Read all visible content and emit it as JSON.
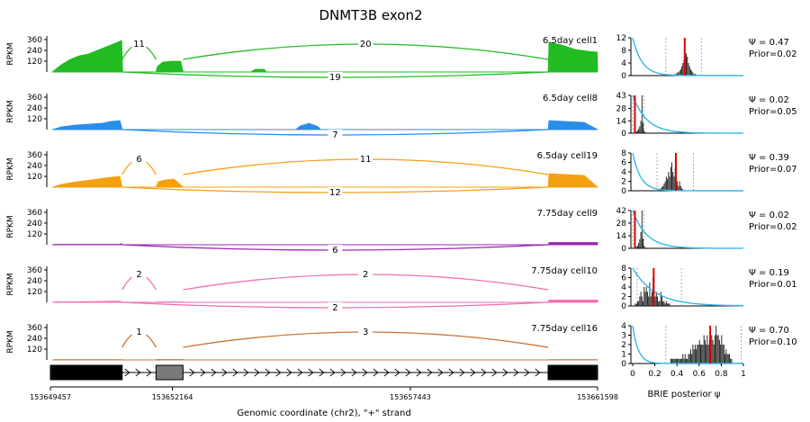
{
  "chart_data": {
    "type": "sashimi",
    "title": "DNMT3B exon2",
    "ylabel": "RPKM",
    "yticks": [
      "360",
      "240",
      "120"
    ],
    "ylim": [
      0,
      400
    ],
    "xlabel": "Genomic coordinate (chr2), \"+\" strand",
    "xticks": [
      "153649457",
      "153652164",
      "153657443",
      "153661598"
    ],
    "xtick_values": [
      153649457,
      153652164,
      153657443,
      153661598
    ],
    "xlim": [
      153649457,
      153661598
    ],
    "gene_model": {
      "strand": "+",
      "exons": [
        [
          153649457,
          153651050
        ],
        [
          153651800,
          153652400
        ],
        [
          153660500,
          153661598
        ]
      ]
    },
    "tracks": [
      {
        "name": "6.5day cell1",
        "color": "#22bb22",
        "coverage": [
          [
            153649500,
            0
          ],
          [
            153649700,
            80
          ],
          [
            153649900,
            140
          ],
          [
            153650100,
            180
          ],
          [
            153650300,
            200
          ],
          [
            153650500,
            240
          ],
          [
            153650700,
            280
          ],
          [
            153650900,
            320
          ],
          [
            153651040,
            350
          ],
          [
            153651060,
            0
          ],
          [
            153651800,
            0
          ],
          [
            153651830,
            60
          ],
          [
            153651950,
            110
          ],
          [
            153652150,
            120
          ],
          [
            153652350,
            120
          ],
          [
            153652400,
            0
          ],
          [
            153653900,
            0
          ],
          [
            153654000,
            30
          ],
          [
            153654200,
            30
          ],
          [
            153654250,
            0
          ],
          [
            153660500,
            0
          ],
          [
            153660520,
            330
          ],
          [
            153660800,
            300
          ],
          [
            153661100,
            250
          ],
          [
            153661400,
            230
          ],
          [
            153661590,
            220
          ],
          [
            153661598,
            0
          ]
        ],
        "junctions": [
          {
            "count": "11",
            "placement": "above",
            "from": 153651050,
            "to": 153651800
          },
          {
            "count": "20",
            "placement": "above",
            "from": 153652400,
            "to": 153660500
          },
          {
            "count": "19",
            "placement": "below",
            "from": 153651050,
            "to": 153660500
          }
        ],
        "psi": "Ψ = 0.47",
        "prior": "Prior=0.02",
        "hist_yticks": [
          "12",
          "8",
          "4",
          "0"
        ],
        "hist_ymax": 12,
        "hist": [
          0,
          0,
          0,
          0,
          0,
          0,
          0,
          0,
          0,
          0,
          0,
          0,
          0,
          0,
          0,
          0,
          0,
          0,
          0,
          0,
          0,
          0,
          0,
          0,
          0,
          0,
          0,
          0,
          0,
          0,
          0,
          0,
          0,
          0,
          0,
          0,
          0.2,
          0.2,
          0.5,
          0.5,
          1,
          1,
          1.5,
          2,
          3,
          4,
          5,
          6,
          7,
          6,
          4,
          3,
          2,
          1.5,
          1,
          0.5,
          0.5,
          0.2,
          0.2,
          0,
          0,
          0,
          0,
          0,
          0,
          0,
          0,
          0,
          0,
          0,
          0,
          0,
          0,
          0,
          0,
          0,
          0,
          0,
          0,
          0,
          0,
          0,
          0,
          0,
          0,
          0,
          0,
          0,
          0,
          0,
          0,
          0,
          0,
          0,
          0,
          0,
          0,
          0,
          0,
          0
        ],
        "prior_decay": 12,
        "red_line": 0.47,
        "dashed": [
          0.3,
          0.62
        ]
      },
      {
        "name": "6.5day cell8",
        "color": "#2a8de8",
        "coverage": [
          [
            153649500,
            0
          ],
          [
            153649700,
            30
          ],
          [
            153650000,
            50
          ],
          [
            153650300,
            60
          ],
          [
            153650600,
            70
          ],
          [
            153650800,
            90
          ],
          [
            153651000,
            100
          ],
          [
            153651050,
            0
          ],
          [
            153654900,
            0
          ],
          [
            153655000,
            40
          ],
          [
            153655200,
            70
          ],
          [
            153655400,
            30
          ],
          [
            153655450,
            0
          ],
          [
            153660500,
            0
          ],
          [
            153660520,
            100
          ],
          [
            153660900,
            90
          ],
          [
            153661300,
            80
          ],
          [
            153661598,
            0
          ]
        ],
        "junctions": [
          {
            "count": "7",
            "placement": "below",
            "from": 153651050,
            "to": 153660500
          }
        ],
        "psi": "Ψ = 0.02",
        "prior": "Prior=0.05",
        "hist_yticks": [
          "43",
          "28",
          "14",
          "0"
        ],
        "hist_ymax": 43,
        "hist": [
          0,
          0,
          1,
          2,
          3,
          5,
          8,
          14,
          43,
          12,
          3,
          1,
          0,
          0,
          0,
          0,
          0,
          0,
          0,
          0,
          0,
          0,
          0,
          0,
          0,
          0,
          0,
          0,
          0,
          0,
          0,
          0,
          0,
          0,
          0,
          0,
          0,
          0,
          0,
          0,
          0,
          0,
          0,
          0,
          0,
          0,
          0,
          0,
          0,
          0,
          0,
          0,
          0,
          0,
          0,
          0,
          0,
          0,
          0,
          0,
          0,
          0,
          0,
          0,
          0,
          0,
          0,
          0,
          0,
          0,
          0,
          0,
          0,
          0,
          0,
          0,
          0,
          0,
          0,
          0,
          0,
          0,
          0,
          0,
          0,
          0,
          0,
          0,
          0,
          0,
          0,
          0,
          0,
          0,
          0,
          0,
          0,
          0,
          0,
          0
        ],
        "prior_decay": 8,
        "red_line": 0.02,
        "dashed": [
          0.0,
          0.1
        ]
      },
      {
        "name": "6.5day cell19",
        "color": "#f5a010",
        "coverage": [
          [
            153649500,
            0
          ],
          [
            153649700,
            30
          ],
          [
            153649900,
            50
          ],
          [
            153650200,
            70
          ],
          [
            153650500,
            90
          ],
          [
            153650800,
            110
          ],
          [
            153651000,
            120
          ],
          [
            153651050,
            0
          ],
          [
            153651800,
            0
          ],
          [
            153651850,
            60
          ],
          [
            153652000,
            80
          ],
          [
            153652200,
            90
          ],
          [
            153652400,
            0
          ],
          [
            153660500,
            0
          ],
          [
            153660520,
            150
          ],
          [
            153660900,
            140
          ],
          [
            153661300,
            130
          ],
          [
            153661598,
            0
          ]
        ],
        "junctions": [
          {
            "count": "6",
            "placement": "above",
            "from": 153651050,
            "to": 153651800
          },
          {
            "count": "11",
            "placement": "above",
            "from": 153652400,
            "to": 153660500
          },
          {
            "count": "12",
            "placement": "below",
            "from": 153651050,
            "to": 153660500
          }
        ],
        "psi": "Ψ = 0.39",
        "prior": "Prior=0.07",
        "hist_yticks": [
          "8",
          "6",
          "4",
          "2",
          "0"
        ],
        "hist_ymax": 8,
        "hist": [
          0,
          0,
          0,
          0,
          0,
          0,
          0,
          0,
          0,
          0,
          0,
          0,
          0,
          0,
          0,
          0,
          0,
          0,
          0,
          0,
          0,
          0,
          0,
          0,
          0.3,
          0.5,
          0.8,
          1,
          1.5,
          2,
          3,
          2.5,
          4,
          3,
          5,
          6,
          4,
          3,
          5,
          3,
          2,
          1,
          2,
          1,
          0.5,
          0.3,
          0,
          0,
          0,
          0,
          0,
          0,
          0,
          0,
          0,
          0,
          0,
          0,
          0,
          0,
          0,
          0,
          0,
          0,
          0,
          0,
          0,
          0,
          0,
          0,
          0,
          0,
          0,
          0,
          0,
          0,
          0,
          0,
          0,
          0,
          0,
          0,
          0,
          0,
          0,
          0,
          0,
          0,
          0,
          0,
          0,
          0,
          0,
          0,
          0,
          0,
          0,
          0,
          0,
          0
        ],
        "prior_decay": 14,
        "red_line": 0.39,
        "dashed": [
          0.22,
          0.55
        ]
      },
      {
        "name": "7.75day cell9",
        "color": "#9b27b0",
        "coverage": [
          [
            153649500,
            0
          ],
          [
            153649550,
            5
          ],
          [
            153651000,
            5
          ],
          [
            153651030,
            15
          ],
          [
            153651050,
            0
          ],
          [
            153660500,
            0
          ],
          [
            153660520,
            25
          ],
          [
            153661598,
            25
          ],
          [
            153661598,
            0
          ]
        ],
        "junctions": [
          {
            "count": "6",
            "placement": "below",
            "from": 153651050,
            "to": 153660500
          }
        ],
        "psi": "Ψ = 0.02",
        "prior": "Prior=0.02",
        "hist_yticks": [
          "42",
          "28",
          "14",
          "0"
        ],
        "hist_ymax": 42,
        "hist": [
          0,
          0,
          1,
          2,
          3,
          6,
          10,
          18,
          42,
          11,
          3,
          1,
          0,
          0,
          0,
          0,
          0,
          0,
          0,
          0,
          0,
          0,
          0,
          0,
          0,
          0,
          0,
          0,
          0,
          0,
          0,
          0,
          0,
          0,
          0,
          0,
          0,
          0,
          0,
          0,
          0,
          0,
          0,
          0,
          0,
          0,
          0,
          0,
          0,
          0,
          0,
          0,
          0,
          0,
          0,
          0,
          0,
          0,
          0,
          0,
          0,
          0,
          0,
          0,
          0,
          0,
          0,
          0,
          0,
          0,
          0,
          0,
          0,
          0,
          0,
          0,
          0,
          0,
          0,
          0,
          0,
          0,
          0,
          0,
          0,
          0,
          0,
          0,
          0,
          0,
          0,
          0,
          0,
          0,
          0,
          0,
          0,
          0,
          0,
          0
        ],
        "prior_decay": 8,
        "red_line": 0.02,
        "dashed": [
          0.0,
          0.1
        ]
      },
      {
        "name": "7.75day cell10",
        "color": "#ef6fb0",
        "coverage": [
          [
            153649500,
            0
          ],
          [
            153649550,
            5
          ],
          [
            153650600,
            10
          ],
          [
            153650800,
            12
          ],
          [
            153651000,
            14
          ],
          [
            153651050,
            0
          ],
          [
            153651800,
            0
          ],
          [
            153651810,
            5
          ],
          [
            153652400,
            5
          ],
          [
            153652400,
            0
          ],
          [
            153660500,
            0
          ],
          [
            153660520,
            25
          ],
          [
            153661598,
            25
          ],
          [
            153661598,
            0
          ]
        ],
        "junctions": [
          {
            "count": "2",
            "placement": "above",
            "from": 153651050,
            "to": 153651800
          },
          {
            "count": "2",
            "placement": "above",
            "from": 153652400,
            "to": 153660500
          },
          {
            "count": "2",
            "placement": "below",
            "from": 153651050,
            "to": 153660500
          }
        ],
        "psi": "Ψ = 0.19",
        "prior": "Prior=0.01",
        "hist_yticks": [
          "8",
          "6",
          "4",
          "2",
          "0"
        ],
        "hist_ymax": 8,
        "hist": [
          0,
          0,
          0.5,
          0.5,
          1,
          1,
          2,
          3,
          2,
          1,
          4,
          3,
          4,
          3,
          2,
          5,
          2,
          3,
          6,
          1,
          2,
          3,
          2,
          1,
          1,
          3,
          2,
          1,
          1,
          0.5,
          1,
          0.5,
          0.5,
          0.5,
          0,
          0,
          0,
          0,
          0,
          0,
          0,
          0,
          0,
          0,
          0,
          0,
          0,
          0,
          0,
          0,
          0,
          0,
          0,
          0,
          0,
          0,
          0,
          0,
          0,
          0,
          0,
          0,
          0,
          0,
          0,
          0,
          0,
          0,
          0,
          0,
          0,
          0,
          0,
          0,
          0,
          0,
          0,
          0,
          0,
          0,
          0,
          0,
          0,
          0,
          0,
          0,
          0,
          0,
          0,
          0,
          0,
          0,
          0,
          0,
          0,
          0,
          0,
          0,
          0,
          0
        ],
        "prior_decay": 5,
        "red_line": 0.19,
        "dashed": [
          0.04,
          0.44
        ]
      },
      {
        "name": "7.75day cell16",
        "color": "#cc7030",
        "coverage": [
          [
            153649500,
            0
          ],
          [
            153649550,
            3
          ],
          [
            153651050,
            3
          ],
          [
            153651050,
            0
          ],
          [
            153651800,
            0
          ],
          [
            153651810,
            5
          ],
          [
            153652400,
            5
          ],
          [
            153652400,
            0
          ],
          [
            153660500,
            0
          ],
          [
            153660520,
            4
          ],
          [
            153661598,
            4
          ],
          [
            153661598,
            0
          ]
        ],
        "junctions": [
          {
            "count": "1",
            "placement": "above",
            "from": 153651050,
            "to": 153651800
          },
          {
            "count": "3",
            "placement": "above",
            "from": 153652400,
            "to": 153660500
          }
        ],
        "psi": "Ψ = 0.70",
        "prior": "Prior=0.10",
        "hist_yticks": [
          "4",
          "3",
          "2",
          "1",
          "0"
        ],
        "hist_ymax": 4,
        "hist": [
          0,
          0,
          0,
          0,
          0,
          0,
          0,
          0,
          0,
          0,
          0,
          0,
          0,
          0,
          0,
          0,
          0,
          0,
          0,
          0,
          0,
          0,
          0,
          0,
          0,
          0,
          0,
          0,
          0,
          0,
          0,
          0,
          0,
          0,
          0.5,
          0.5,
          0.5,
          0.5,
          0.5,
          0.5,
          0.5,
          0.5,
          0.5,
          0.5,
          0.5,
          1,
          0.5,
          1,
          0.5,
          0.5,
          1,
          1,
          1.5,
          1,
          2,
          1.5,
          2,
          1.5,
          2,
          2,
          2.5,
          2,
          2,
          2,
          3,
          2.5,
          2,
          3,
          2,
          2.5,
          3,
          3,
          2.5,
          2,
          3,
          4,
          3,
          3,
          2.5,
          2,
          3,
          2,
          2,
          1,
          1.5,
          1,
          1,
          1,
          0.5,
          0.5,
          0,
          0,
          0,
          0,
          0,
          0,
          0,
          0,
          0,
          0
        ],
        "prior_decay": 20,
        "red_line": 0.7,
        "dashed": [
          0.3,
          0.98
        ]
      }
    ],
    "hist_xlabel": "BRIE posterior ψ",
    "hist_xticks": [
      "0",
      "0.2",
      "0.4",
      "0.6",
      "0.8",
      "1"
    ],
    "hist_xtick_values": [
      0,
      0.2,
      0.4,
      0.6,
      0.8,
      1
    ],
    "prior_color": "#30b8e8",
    "posterior_color": "#1a1a1a",
    "mean_line_color": "#e00000"
  }
}
